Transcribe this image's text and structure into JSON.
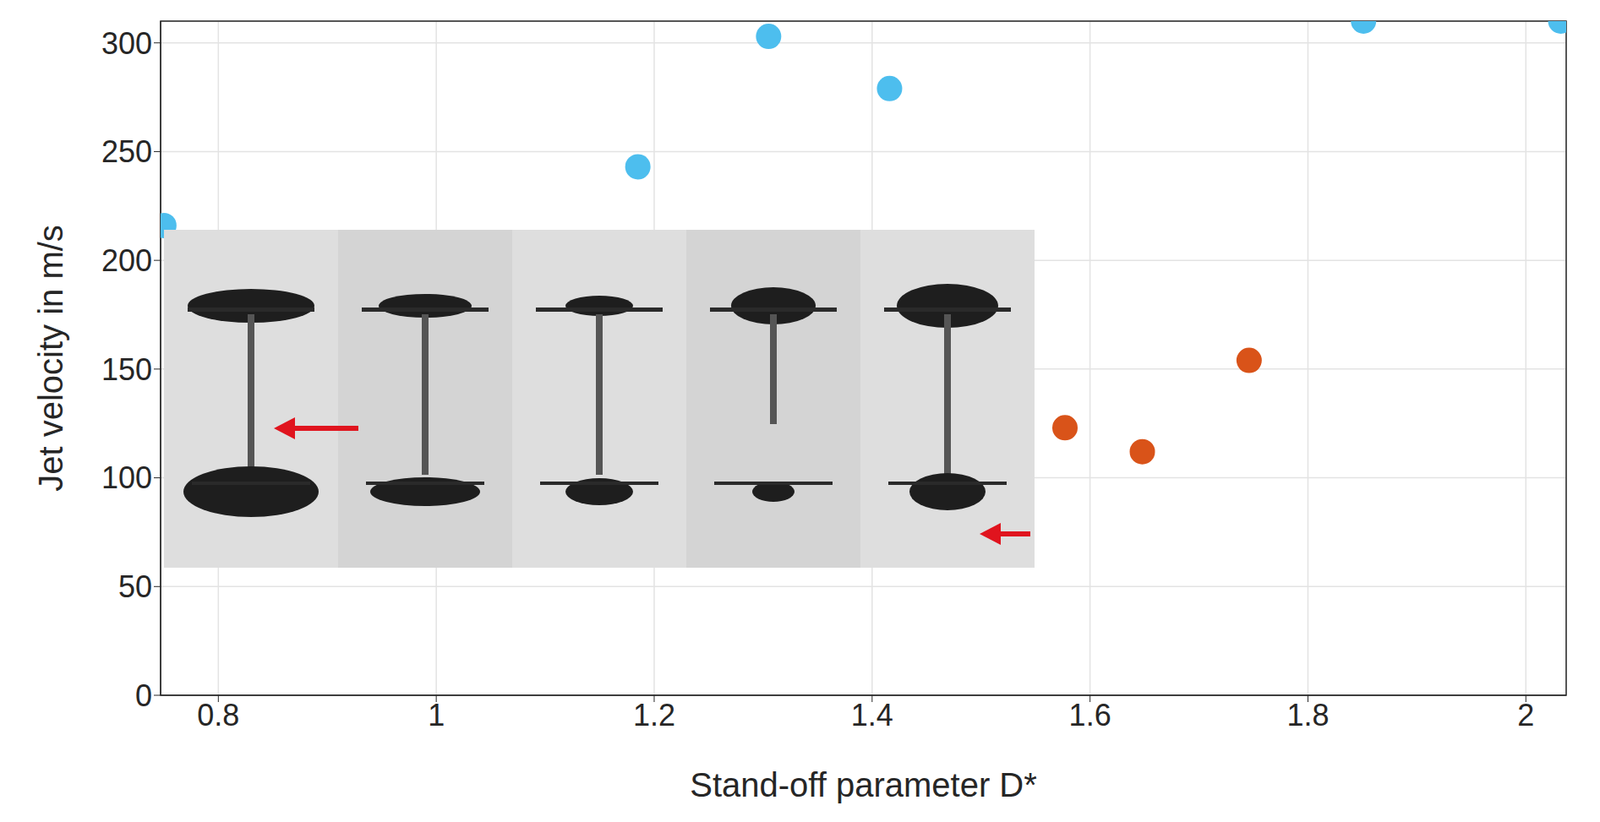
{
  "chart_data": {
    "type": "scatter",
    "x_label": "Stand-off parameter D*",
    "y_label": "Jet velocity in m/s",
    "xlim": [
      0.747,
      2.037
    ],
    "xticks": [
      0.8,
      1,
      1.2,
      1.4,
      1.6,
      1.8,
      2
    ],
    "ylim": [
      0,
      310
    ],
    "yticks": [
      0,
      50,
      100,
      150,
      200,
      250,
      300
    ],
    "grid": true,
    "series": [
      {
        "color": "#4DBEEE",
        "marker": "circle",
        "x": [
          0.75,
          1.185,
          1.305,
          1.416,
          1.851,
          2.032
        ],
        "values": [
          216,
          243,
          303,
          279,
          310,
          310
        ]
      },
      {
        "color": "#D95319",
        "marker": "circle",
        "x": [
          1.577,
          1.648,
          1.746
        ],
        "values": [
          123,
          112,
          154
        ]
      }
    ]
  }
}
